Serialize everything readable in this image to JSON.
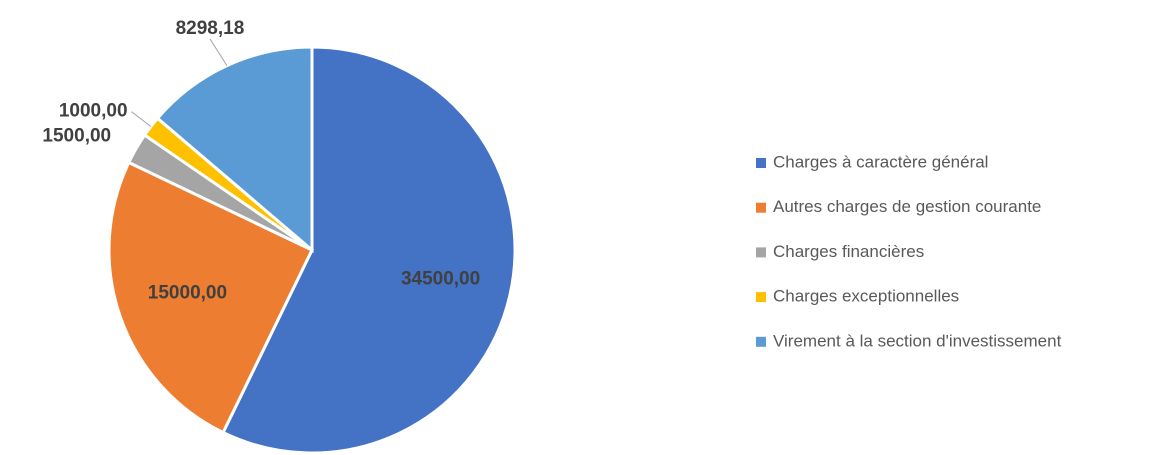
{
  "chart_data": {
    "type": "pie",
    "categories": [
      "Charges à caractère général",
      "Autres charges de gestion courante",
      "Charges financières",
      "Charges exceptionnelles",
      "Virement à la section d'investissement"
    ],
    "values": [
      34500,
      15000,
      1500,
      1000,
      8298.18
    ],
    "value_labels": [
      "34500,00",
      "15000,00",
      "1500,00",
      "1000,00",
      "8298,18"
    ],
    "colors": [
      "#4472c4",
      "#ed7d31",
      "#a5a5a5",
      "#ffc000",
      "#5b9bd5"
    ],
    "legend": "right"
  }
}
